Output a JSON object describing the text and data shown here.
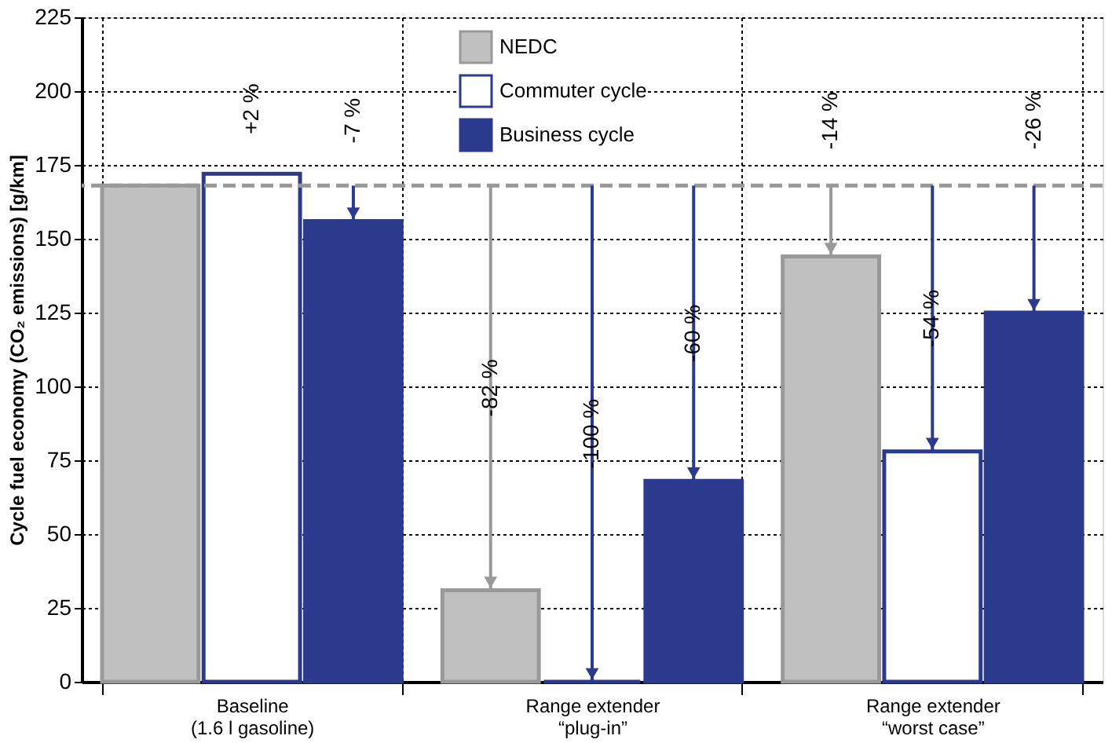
{
  "chart_data": {
    "type": "bar",
    "ylabel": "Cycle fuel economy (CO₂ emissions) [g/km]",
    "categories": [
      "Baseline\n(1.6 l gasoline)",
      "Range extender\n“plug-in”",
      "Range extender\n“worst case”"
    ],
    "series": [
      {
        "name": "NEDC",
        "color": "#c0c0c0",
        "values": [
          168,
          31,
          144
        ]
      },
      {
        "name": "Commuter cycle",
        "color": "#2b3a8c",
        "values": [
          172,
          0,
          78
        ]
      },
      {
        "name": "Business cycle",
        "color": "#2b3a8c",
        "values": [
          156,
          68,
          125
        ]
      }
    ],
    "annotations": [
      "+2 %",
      "-7 %",
      "-82 %",
      "-100 %",
      "-60 %",
      "-14 %",
      "-54 %",
      "-26 %"
    ],
    "ylim": [
      0,
      225
    ],
    "yticks": [
      0,
      25,
      50,
      75,
      100,
      125,
      150,
      175,
      200,
      225
    ],
    "ref_lines": [
      {
        "axis": "y",
        "value": 168,
        "color": "#999999",
        "line_style": "dashed"
      }
    ],
    "grid": true,
    "legend": "top"
  }
}
